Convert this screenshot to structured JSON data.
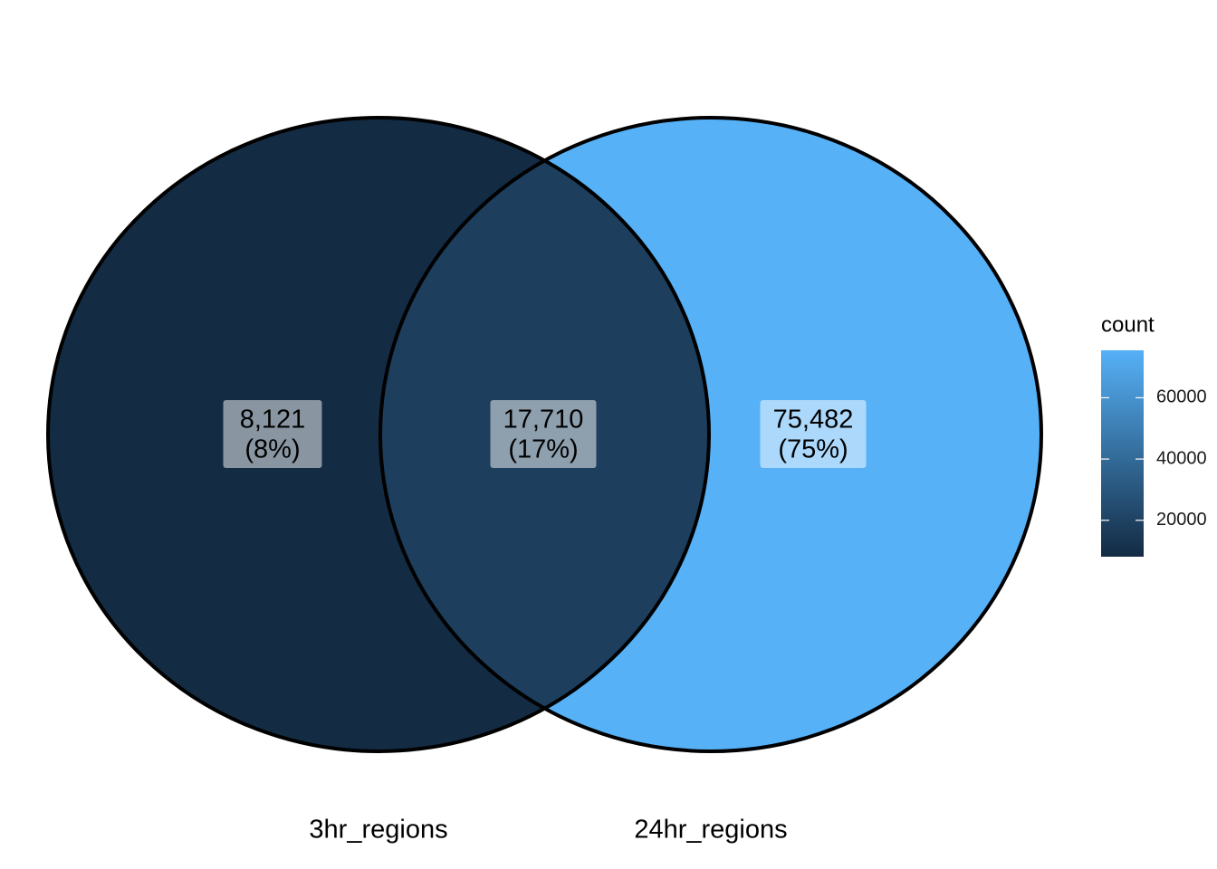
{
  "chart_data": {
    "type": "venn",
    "sets": [
      "3hr_regions",
      "24hr_regions"
    ],
    "values": [
      8121,
      17710,
      75482
    ],
    "value_labels": [
      "8,121",
      "17,710",
      "75,482"
    ],
    "percents": [
      8,
      17,
      75
    ],
    "percent_labels": [
      "(8%)",
      "(17%)",
      "(75%)"
    ],
    "colorbar": {
      "title": "count",
      "lim": [
        8121,
        75482
      ],
      "ticks": [
        20000,
        40000,
        60000
      ],
      "low_color": "#132b43",
      "high_color": "#56b1f7"
    },
    "outline_color": "#000000"
  }
}
